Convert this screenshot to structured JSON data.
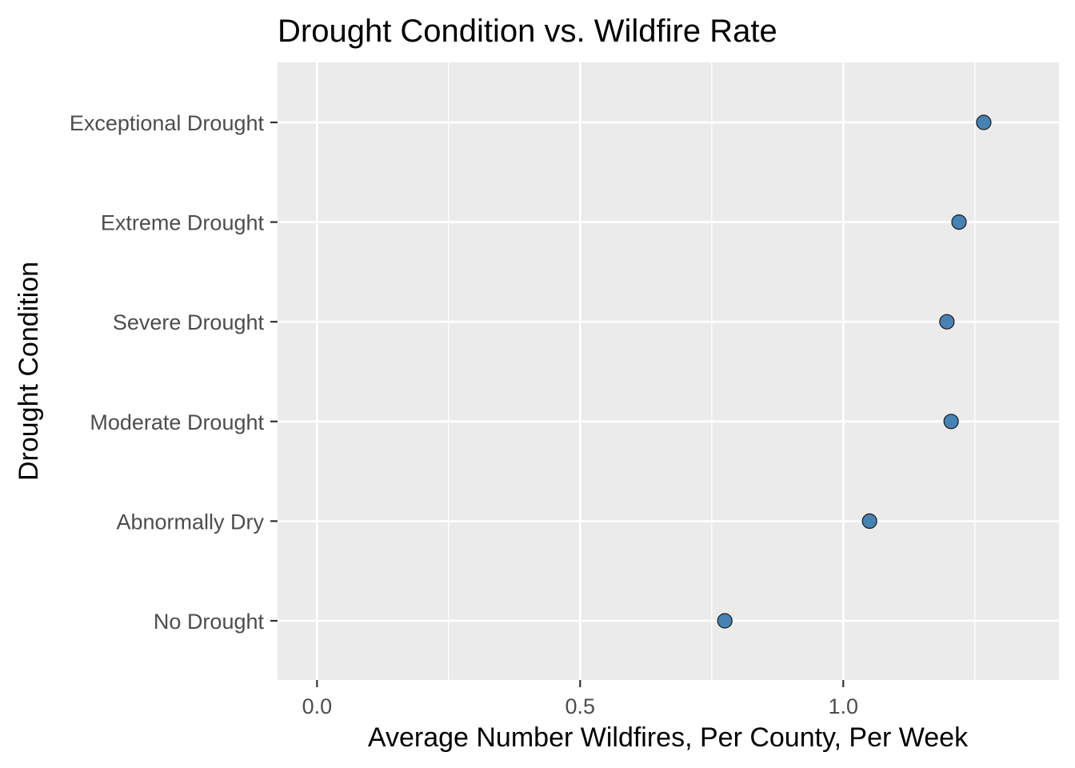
{
  "chart_data": {
    "type": "scatter",
    "title": "Drought Condition vs. Wildfire Rate",
    "xlabel": "Average Number Wildfires, Per County, Per Week",
    "ylabel": "Drought Condition",
    "categories": [
      "No Drought",
      "Abnormally Dry",
      "Moderate Drought",
      "Severe Drought",
      "Extreme Drought",
      "Exceptional Drought"
    ],
    "values": [
      0.775,
      1.05,
      1.205,
      1.197,
      1.22,
      1.267
    ],
    "xlim": [
      -0.075,
      1.41
    ],
    "x_ticks": [
      0.0,
      0.5,
      1.0
    ],
    "x_tick_labels": [
      "0.0",
      "0.5",
      "1.0"
    ],
    "x_minor_ticks": [
      0.25,
      0.75,
      1.25
    ],
    "grid": true,
    "legend": "none",
    "colors": {
      "point_fill": "#4682b4",
      "panel_bg": "#ebebeb",
      "grid": "#ffffff"
    }
  }
}
